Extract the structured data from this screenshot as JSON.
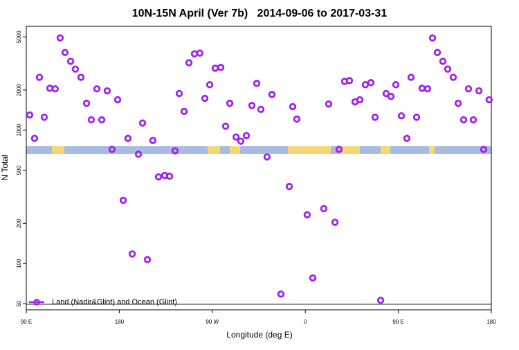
{
  "chart_data": {
    "type": "scatter",
    "title": "10N-15N April (Ver 7b)   2014-09-06 to 2017-03-31",
    "x_label": "Longitude (deg E)",
    "y_label": "N Total",
    "log_y": true,
    "legend": "bottom-left",
    "xlim": [
      90,
      540
    ],
    "ylim": [
      45,
      6000
    ],
    "xticks": [
      {
        "value": 90,
        "label": "90 E"
      },
      180,
      {
        "value": 270,
        "label": "90 W"
      },
      {
        "value": 360,
        "label": "0"
      },
      {
        "value": 450,
        "label": "90 E"
      },
      {
        "value": 540,
        "label": "180"
      }
    ],
    "yticks": [
      50,
      100,
      200,
      500,
      1000,
      2000,
      5000
    ],
    "series": [
      {
        "name": "Land (Nadir&Glint) and Ocean (Glint)",
        "color": "#a020f0",
        "x": [
          93.3,
          98,
          102.7,
          107.4,
          112.8,
          118,
          122.8,
          127.5,
          132.9,
          137.5,
          142.9,
          148.3,
          152.9,
          158.3,
          163,
          168.3,
          173,
          178.4,
          183.8,
          188.4,
          192.5,
          198.5,
          202.5,
          207.2,
          212.5,
          217.9,
          223.9,
          228.6,
          233.9,
          238,
          242.7,
          247.4,
          252.7,
          258,
          262.8,
          267.5,
          272.8,
          278.2,
          282.9,
          286.9,
          293,
          297.6,
          303,
          308.3,
          313,
          317,
          323,
          327.7,
          336.4,
          344.5,
          347.8,
          351.8,
          361.8,
          367.2,
          377.9,
          382.6,
          388.7,
          392.7,
          398,
          402.7,
          408.1,
          412.8,
          418.1,
          423.5,
          427.5,
          432.9,
          438.2,
          442.9,
          447.6,
          453,
          458.3,
          462.3,
          467.7,
          473,
          478.4,
          483.1,
          487.8,
          493.1,
          497.8,
          503.2,
          507.9,
          513.2,
          517.9,
          522.6,
          528,
          532.6,
          537.9
        ],
        "values": [
          1300,
          867,
          2490,
          1250,
          2060,
          2040,
          4910,
          3820,
          3280,
          2870,
          2490,
          1590,
          1195,
          2040,
          1195,
          1970,
          717,
          1690,
          298,
          867,
          118,
          660,
          1130,
          107,
          837,
          446,
          458,
          451,
          700,
          1880,
          1380,
          3200,
          3730,
          3780,
          1730,
          2190,
          2910,
          2950,
          1070,
          1590,
          888,
          827,
          909,
          1530,
          2240,
          1430,
          630,
          1850,
          59,
          378,
          1500,
          1210,
          232,
          78,
          258,
          1570,
          204,
          717,
          2320,
          2350,
          1630,
          1690,
          2190,
          2270,
          1250,
          53,
          1880,
          1790,
          2190,
          1280,
          867,
          2490,
          1250,
          2060,
          2040,
          4910,
          3820,
          3280,
          2870,
          2490,
          1590,
          1195,
          2040,
          1195,
          1970,
          717,
          1690
        ]
      }
    ]
  }
}
